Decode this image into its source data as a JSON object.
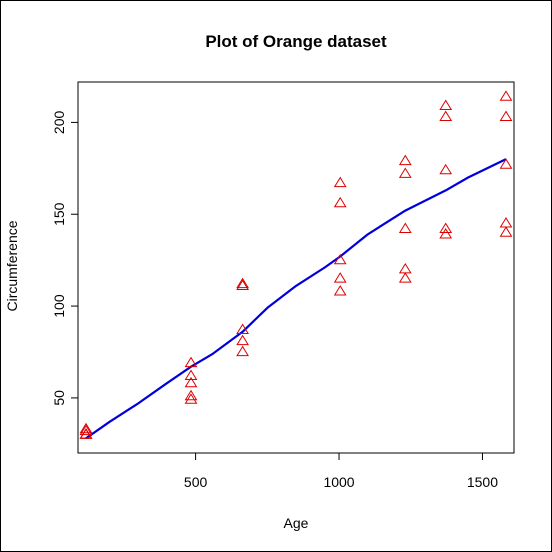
{
  "chart_data": {
    "type": "scatter",
    "title": "Plot of Orange dataset",
    "xlabel": "Age",
    "ylabel": "Circumference",
    "xlim": [
      90,
      1610
    ],
    "ylim": [
      20,
      222
    ],
    "x_ticks": [
      500,
      1000,
      1500
    ],
    "y_ticks": [
      50,
      100,
      150,
      200
    ],
    "grid": false,
    "legend": "none",
    "colors": {
      "points": "#dd0000",
      "line": "#0000dd",
      "axis": "#000000"
    },
    "series": [
      {
        "type": "scatter",
        "marker": "triangle-open",
        "points": [
          [
            118,
            30
          ],
          [
            118,
            33
          ],
          [
            118,
            30
          ],
          [
            118,
            32
          ],
          [
            118,
            30
          ],
          [
            484,
            58
          ],
          [
            484,
            69
          ],
          [
            484,
            51
          ],
          [
            484,
            62
          ],
          [
            484,
            49
          ],
          [
            664,
            87
          ],
          [
            664,
            111
          ],
          [
            664,
            75
          ],
          [
            664,
            112
          ],
          [
            664,
            81
          ],
          [
            1004,
            115
          ],
          [
            1004,
            156
          ],
          [
            1004,
            108
          ],
          [
            1004,
            167
          ],
          [
            1004,
            125
          ],
          [
            1231,
            120
          ],
          [
            1231,
            172
          ],
          [
            1231,
            115
          ],
          [
            1231,
            179
          ],
          [
            1231,
            142
          ],
          [
            1372,
            142
          ],
          [
            1372,
            203
          ],
          [
            1372,
            139
          ],
          [
            1372,
            209
          ],
          [
            1372,
            174
          ],
          [
            1582,
            145
          ],
          [
            1582,
            203
          ],
          [
            1582,
            140
          ],
          [
            1582,
            214
          ],
          [
            1582,
            177
          ]
        ]
      },
      {
        "type": "line",
        "points": [
          [
            118,
            28
          ],
          [
            200,
            37
          ],
          [
            300,
            47
          ],
          [
            400,
            58
          ],
          [
            484,
            67
          ],
          [
            560,
            74
          ],
          [
            664,
            86
          ],
          [
            750,
            99
          ],
          [
            850,
            111
          ],
          [
            950,
            121
          ],
          [
            1004,
            127
          ],
          [
            1100,
            139
          ],
          [
            1231,
            152
          ],
          [
            1372,
            163
          ],
          [
            1450,
            170
          ],
          [
            1582,
            180
          ]
        ]
      }
    ]
  }
}
